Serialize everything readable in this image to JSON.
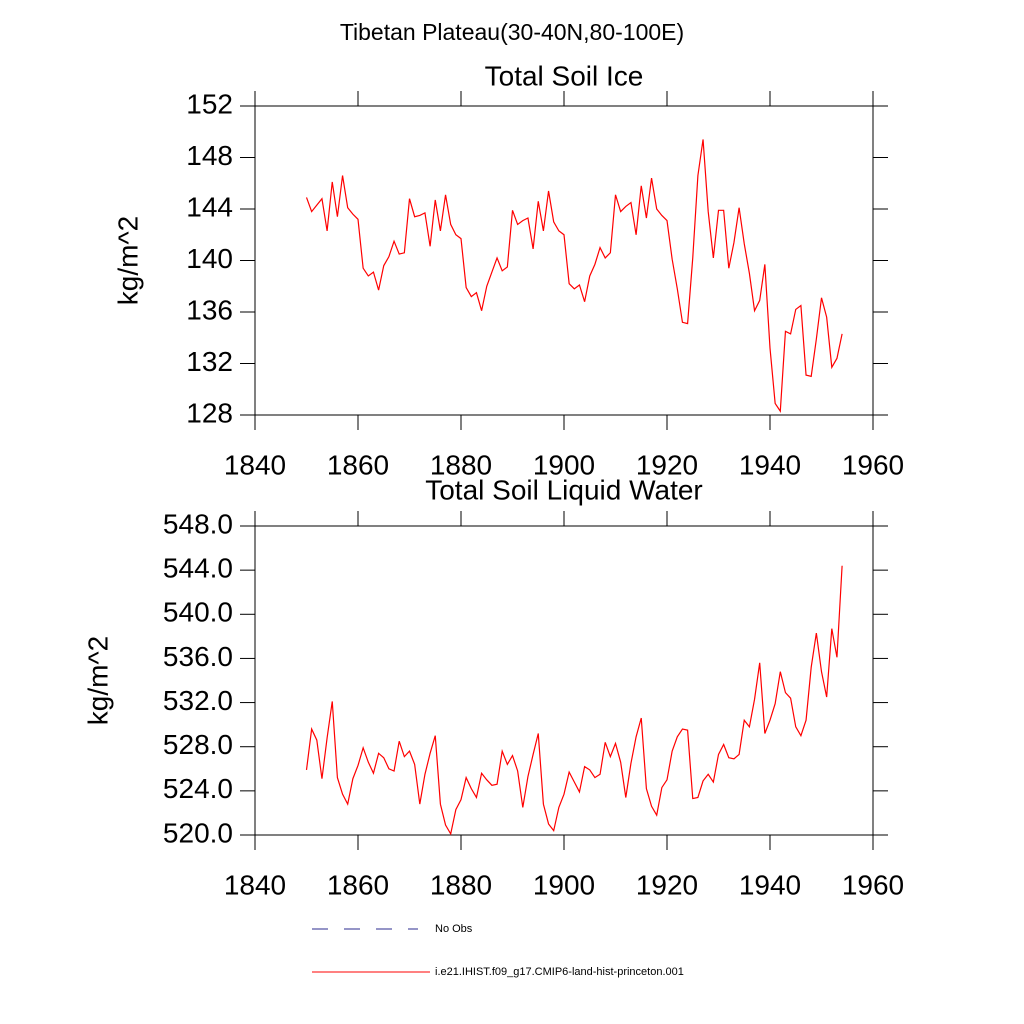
{
  "title": "Tibetan Plateau(30-40N,80-100E)",
  "chart_data": [
    {
      "type": "line",
      "title": "Total Soil Ice",
      "ylabel": "kg/m^2",
      "x": [
        1850,
        1851,
        1852,
        1853,
        1854,
        1855,
        1856,
        1857,
        1858,
        1859,
        1860,
        1861,
        1862,
        1863,
        1864,
        1865,
        1866,
        1867,
        1868,
        1869,
        1870,
        1871,
        1872,
        1873,
        1874,
        1875,
        1876,
        1877,
        1878,
        1879,
        1880,
        1881,
        1882,
        1883,
        1884,
        1885,
        1886,
        1887,
        1888,
        1889,
        1890,
        1891,
        1892,
        1893,
        1894,
        1895,
        1896,
        1897,
        1898,
        1899,
        1900,
        1901,
        1902,
        1903,
        1904,
        1905,
        1906,
        1907,
        1908,
        1909,
        1910,
        1911,
        1912,
        1913,
        1914,
        1915,
        1916,
        1917,
        1918,
        1919,
        1920,
        1921,
        1922,
        1923,
        1924,
        1925,
        1926,
        1927,
        1928,
        1929,
        1930,
        1931,
        1932,
        1933,
        1934,
        1935,
        1936,
        1937,
        1938,
        1939,
        1940,
        1941,
        1942,
        1943,
        1944,
        1945,
        1946,
        1947,
        1948,
        1949,
        1950,
        1951,
        1952,
        1953,
        1954
      ],
      "values": [
        144.9,
        143.8,
        144.3,
        144.8,
        142.3,
        146.1,
        143.4,
        146.6,
        144.1,
        143.6,
        143.2,
        139.4,
        138.8,
        139.1,
        137.7,
        139.6,
        140.3,
        141.5,
        140.5,
        140.6,
        144.8,
        143.4,
        143.5,
        143.7,
        141.1,
        144.7,
        142.3,
        145.1,
        142.8,
        142.0,
        141.7,
        137.9,
        137.2,
        137.5,
        136.1,
        138.0,
        139.1,
        140.2,
        139.2,
        139.5,
        143.9,
        142.8,
        143.1,
        143.3,
        140.9,
        144.6,
        142.3,
        145.4,
        143.0,
        142.3,
        142.0,
        138.2,
        137.8,
        138.1,
        136.8,
        138.8,
        139.7,
        141.0,
        140.2,
        140.6,
        145.1,
        143.8,
        144.2,
        144.5,
        142.0,
        145.8,
        143.3,
        146.4,
        144.0,
        143.5,
        143.1,
        140.1,
        137.8,
        135.2,
        135.1,
        140.2,
        146.6,
        149.4,
        143.8,
        140.2,
        143.9,
        143.9,
        139.4,
        141.4,
        144.1,
        141.3,
        139.0,
        136.1,
        136.9,
        139.7,
        133.2,
        128.9,
        128.3,
        134.5,
        134.3,
        136.2,
        136.5,
        131.1,
        131.0,
        133.9,
        137.1,
        135.6,
        131.7,
        132.4,
        134.3
      ],
      "color": "#ff0000",
      "xlim": [
        1840,
        1960
      ],
      "xticks": [
        1840,
        1860,
        1880,
        1900,
        1920,
        1940,
        1960
      ],
      "ylim": [
        128,
        152
      ],
      "yticks": [
        128,
        132,
        136,
        140,
        144,
        148,
        152
      ]
    },
    {
      "type": "line",
      "title": "Total Soil Liquid Water",
      "ylabel": "kg/m^2",
      "x": [
        1850,
        1851,
        1852,
        1853,
        1854,
        1855,
        1856,
        1857,
        1858,
        1859,
        1860,
        1861,
        1862,
        1863,
        1864,
        1865,
        1866,
        1867,
        1868,
        1869,
        1870,
        1871,
        1872,
        1873,
        1874,
        1875,
        1876,
        1877,
        1878,
        1879,
        1880,
        1881,
        1882,
        1883,
        1884,
        1885,
        1886,
        1887,
        1888,
        1889,
        1890,
        1891,
        1892,
        1893,
        1894,
        1895,
        1896,
        1897,
        1898,
        1899,
        1900,
        1901,
        1902,
        1903,
        1904,
        1905,
        1906,
        1907,
        1908,
        1909,
        1910,
        1911,
        1912,
        1913,
        1914,
        1915,
        1916,
        1917,
        1918,
        1919,
        1920,
        1921,
        1922,
        1923,
        1924,
        1925,
        1926,
        1927,
        1928,
        1929,
        1930,
        1931,
        1932,
        1933,
        1934,
        1935,
        1936,
        1937,
        1938,
        1939,
        1940,
        1941,
        1942,
        1943,
        1944,
        1945,
        1946,
        1947,
        1948,
        1949,
        1950,
        1951,
        1952,
        1953,
        1954
      ],
      "values": [
        525.9,
        529.6,
        528.6,
        525.1,
        528.8,
        532.1,
        525.2,
        523.7,
        522.8,
        525.1,
        526.3,
        527.9,
        526.6,
        525.6,
        527.4,
        527.0,
        526.0,
        525.8,
        528.5,
        527.1,
        527.6,
        526.4,
        522.8,
        525.5,
        527.4,
        529.0,
        522.8,
        520.9,
        520.1,
        522.3,
        523.2,
        525.2,
        524.2,
        523.4,
        525.6,
        525.0,
        524.5,
        524.6,
        527.6,
        526.4,
        527.2,
        525.8,
        522.5,
        525.3,
        527.3,
        529.2,
        522.8,
        521.0,
        520.4,
        522.5,
        523.7,
        525.7,
        524.8,
        523.9,
        526.2,
        525.9,
        525.2,
        525.5,
        528.4,
        527.1,
        528.3,
        526.6,
        523.4,
        526.5,
        528.9,
        530.6,
        524.2,
        522.6,
        521.8,
        524.3,
        525.0,
        527.6,
        528.9,
        529.6,
        529.5,
        523.3,
        523.4,
        524.9,
        525.5,
        524.8,
        527.3,
        528.2,
        527.0,
        526.9,
        527.3,
        530.4,
        529.8,
        532.3,
        535.6,
        529.2,
        530.4,
        531.9,
        534.8,
        532.9,
        532.4,
        529.8,
        529.0,
        530.4,
        535.2,
        538.3,
        534.8,
        532.5,
        538.7,
        536.1,
        544.4
      ],
      "color": "#ff0000",
      "xlim": [
        1840,
        1960
      ],
      "xticks": [
        1840,
        1860,
        1880,
        1900,
        1920,
        1940,
        1960
      ],
      "ylim": [
        520,
        548
      ],
      "yticks": [
        {
          "value": 520,
          "label": "520.0"
        },
        {
          "value": 524,
          "label": "524.0"
        },
        {
          "value": 528,
          "label": "528.0"
        },
        {
          "value": 532,
          "label": "532.0"
        },
        {
          "value": 536,
          "label": "536.0"
        },
        {
          "value": 540,
          "label": "540.0"
        },
        {
          "value": 544,
          "label": "544.0"
        },
        {
          "value": 548,
          "label": "548.0"
        }
      ]
    }
  ],
  "legend": [
    {
      "name": "No Obs",
      "color": "#2b2b8f",
      "dash": true
    },
    {
      "name": "i.e21.IHIST.f09_g17.CMIP6-land-hist-princeton.001",
      "color": "#ff0000",
      "dash": false
    }
  ]
}
